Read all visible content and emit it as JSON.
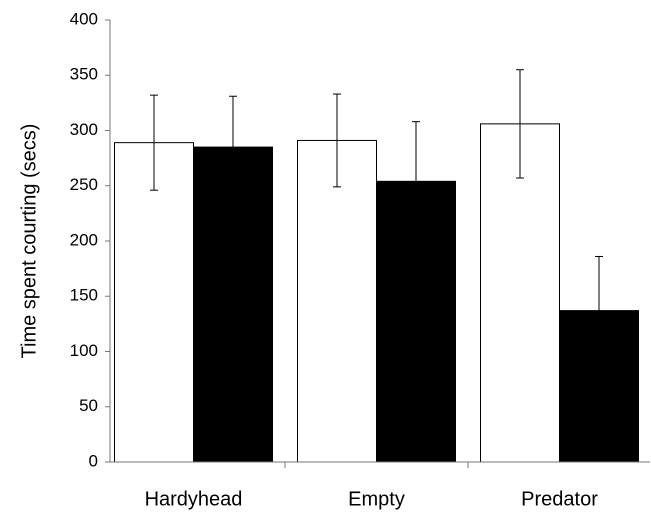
{
  "chart_data": {
    "type": "bar",
    "y_label": "Time spent courting (secs)",
    "categories": [
      "Hardyhead",
      "Empty",
      "Predator"
    ],
    "series": [
      {
        "color": "#ffffff",
        "values": [
          289,
          291,
          306
        ],
        "errors": [
          43,
          42,
          49
        ]
      },
      {
        "color": "#000000",
        "values": [
          285,
          254,
          137
        ],
        "errors": [
          46,
          54,
          49
        ]
      }
    ],
    "ylim": [
      0,
      400
    ],
    "yticks": [
      0,
      50,
      100,
      150,
      200,
      250,
      300,
      350,
      400
    ]
  }
}
